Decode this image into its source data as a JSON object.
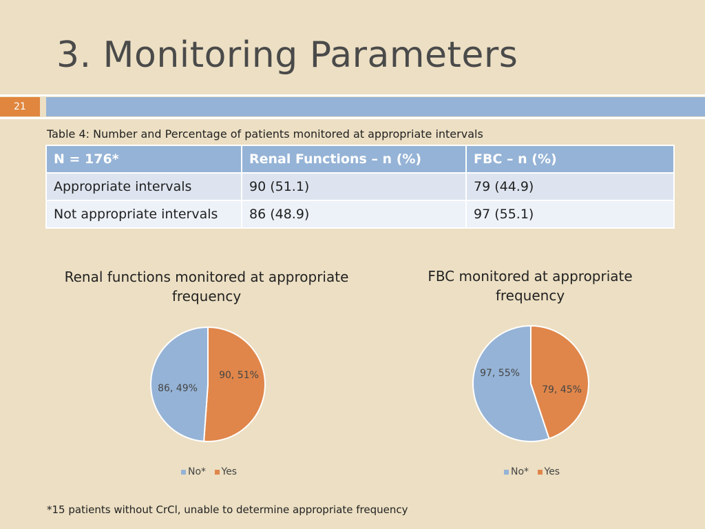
{
  "slide": {
    "title": "3. Monitoring Parameters",
    "page_number": "21"
  },
  "table": {
    "caption": "Table 4: Number and Percentage of patients monitored at appropriate intervals",
    "headers": [
      "N = 176*",
      "Renal Functions – n (%)",
      "FBC – n (%)"
    ],
    "rows": [
      [
        "Appropriate intervals",
        "90 (51.1)",
        "79 (44.9)"
      ],
      [
        "Not appropriate intervals",
        "86 (48.9)",
        "97 (55.1)"
      ]
    ]
  },
  "chart_data": [
    {
      "type": "pie",
      "title": "Renal functions monitored at appropriate frequency",
      "title_lines": [
        "Renal functions monitored at appropriate",
        "frequency"
      ],
      "categories": [
        "No*",
        "Yes"
      ],
      "values": [
        86,
        90
      ],
      "data_labels": [
        "86, 49%",
        "90, 51%"
      ],
      "colors": [
        "#95B3D6",
        "#E0864A"
      ],
      "legend": [
        "No*",
        "Yes"
      ],
      "legend_position": "bottom"
    },
    {
      "type": "pie",
      "title": "FBC monitored at appropriate frequency",
      "title_lines": [
        "FBC monitored at appropriate",
        "frequency"
      ],
      "categories": [
        "No*",
        "Yes"
      ],
      "values": [
        97,
        79
      ],
      "data_labels": [
        "97, 55%",
        "79, 45%"
      ],
      "colors": [
        "#95B3D6",
        "#E0864A"
      ],
      "legend": [
        "No*",
        "Yes"
      ],
      "legend_position": "bottom"
    }
  ],
  "footnote": "*15 patients without CrCl, unable to determine appropriate frequency"
}
